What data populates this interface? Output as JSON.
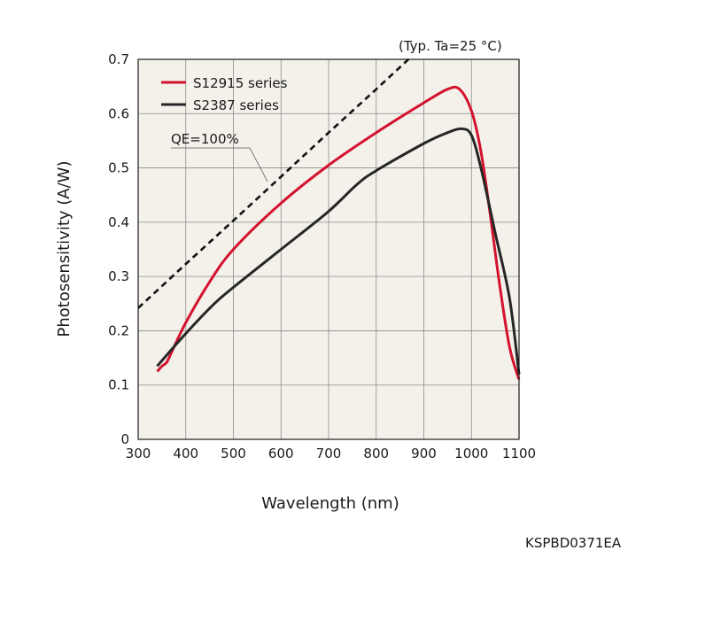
{
  "chart_data": {
    "type": "line",
    "note": "(Typ. Ta=25 °C)",
    "xlabel": "Wavelength (nm)",
    "ylabel": "Photosensitivity (A/W)",
    "xlim": [
      300,
      1100
    ],
    "ylim": [
      0,
      0.7
    ],
    "xticks": [
      "300",
      "400",
      "500",
      "600",
      "700",
      "800",
      "900",
      "1000",
      "1100"
    ],
    "yticks": [
      "0",
      "0.1",
      "0.2",
      "0.3",
      "0.4",
      "0.5",
      "0.6",
      "0.7"
    ],
    "grid": true,
    "legend_position": "top-left",
    "code": "KSPBD0371EA",
    "qe_label": "QE=100%",
    "series": [
      {
        "name": "S12915 series",
        "color": "#d4122e",
        "x": [
          340,
          350,
          360,
          370,
          400,
          450,
          500,
          600,
          700,
          800,
          900,
          950,
          975,
          1000,
          1020,
          1040,
          1060,
          1080,
          1100
        ],
        "y": [
          0.125,
          0.135,
          0.142,
          0.16,
          0.215,
          0.29,
          0.35,
          0.435,
          0.505,
          0.565,
          0.62,
          0.645,
          0.645,
          0.605,
          0.53,
          0.41,
          0.28,
          0.17,
          0.11
        ]
      },
      {
        "name": "S2387 series",
        "color": "#262626",
        "x": [
          340,
          400,
          460,
          500,
          600,
          700,
          760,
          800,
          900,
          950,
          980,
          1000,
          1020,
          1050,
          1080,
          1100
        ],
        "y": [
          0.135,
          0.195,
          0.25,
          0.28,
          0.35,
          0.42,
          0.47,
          0.495,
          0.545,
          0.565,
          0.572,
          0.56,
          0.5,
          0.38,
          0.26,
          0.12
        ]
      },
      {
        "color": "#111111",
        "dashed": true,
        "x": [
          300,
          400,
          500,
          600,
          700,
          800,
          875
        ],
        "y": [
          0.242,
          0.323,
          0.403,
          0.484,
          0.565,
          0.645,
          0.706
        ]
      }
    ]
  }
}
